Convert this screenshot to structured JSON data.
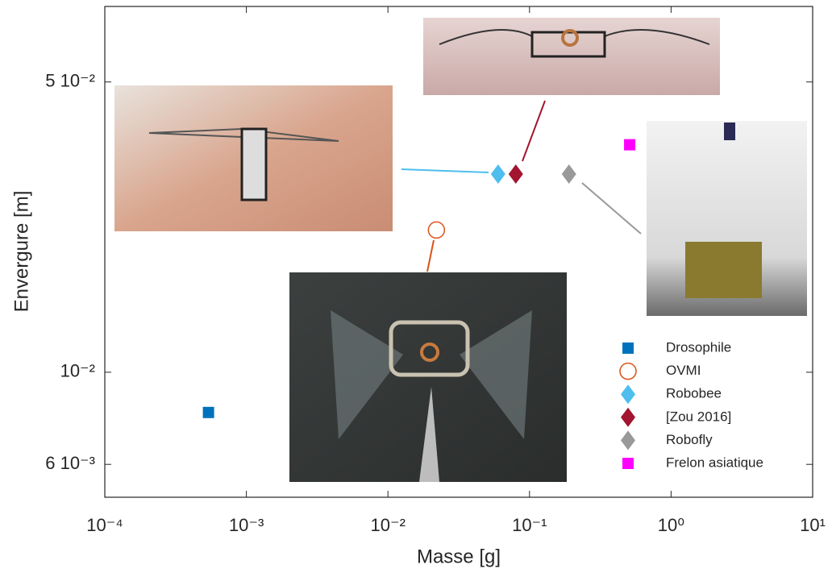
{
  "chart_data": {
    "type": "scatter",
    "x_label": "Masse [g]",
    "y_label": "Envergure [m]",
    "x_scale": "log",
    "y_scale": "log",
    "grid": false,
    "legend": "lower right",
    "xlim": [
      0.0001,
      10
    ],
    "ylim": [
      0.005,
      0.076
    ],
    "xticks": [
      {
        "value": 0.0001,
        "label": "10⁻⁴"
      },
      {
        "value": 0.001,
        "label": "10⁻³"
      },
      {
        "value": 0.01,
        "label": "10⁻²"
      },
      {
        "value": 0.1,
        "label": "10⁻¹"
      },
      {
        "value": 1,
        "label": "10⁰"
      },
      {
        "value": 10,
        "label": "10¹"
      }
    ],
    "yticks": [
      {
        "value": 0.006,
        "label": "6 10⁻³"
      },
      {
        "value": 0.01,
        "label": "10⁻²"
      },
      {
        "value": 0.05,
        "label": "5 10⁻²"
      }
    ],
    "series": [
      {
        "name": "Drosophile",
        "color": "#0072bd",
        "marker": "square",
        "x": [
          0.00054
        ],
        "values": [
          0.008
        ]
      },
      {
        "name": "OVMI",
        "color": "#d95319",
        "marker": "open-circle",
        "x": [
          0.022
        ],
        "values": [
          0.022
        ]
      },
      {
        "name": "Robobee",
        "color": "#4dbeee",
        "marker": "diamond",
        "x": [
          0.06
        ],
        "values": [
          0.03
        ]
      },
      {
        "name": "[Zou 2016]",
        "color": "#a2142f",
        "marker": "diamond",
        "x": [
          0.08
        ],
        "values": [
          0.03
        ]
      },
      {
        "name": "Robofly",
        "color": "#999999",
        "marker": "diamond",
        "x": [
          0.19
        ],
        "values": [
          0.03
        ]
      },
      {
        "name": "Frelon asiatique",
        "color": "#ff00ff",
        "marker": "square",
        "x": [
          0.51
        ],
        "values": [
          0.0353
        ]
      }
    ]
  }
}
